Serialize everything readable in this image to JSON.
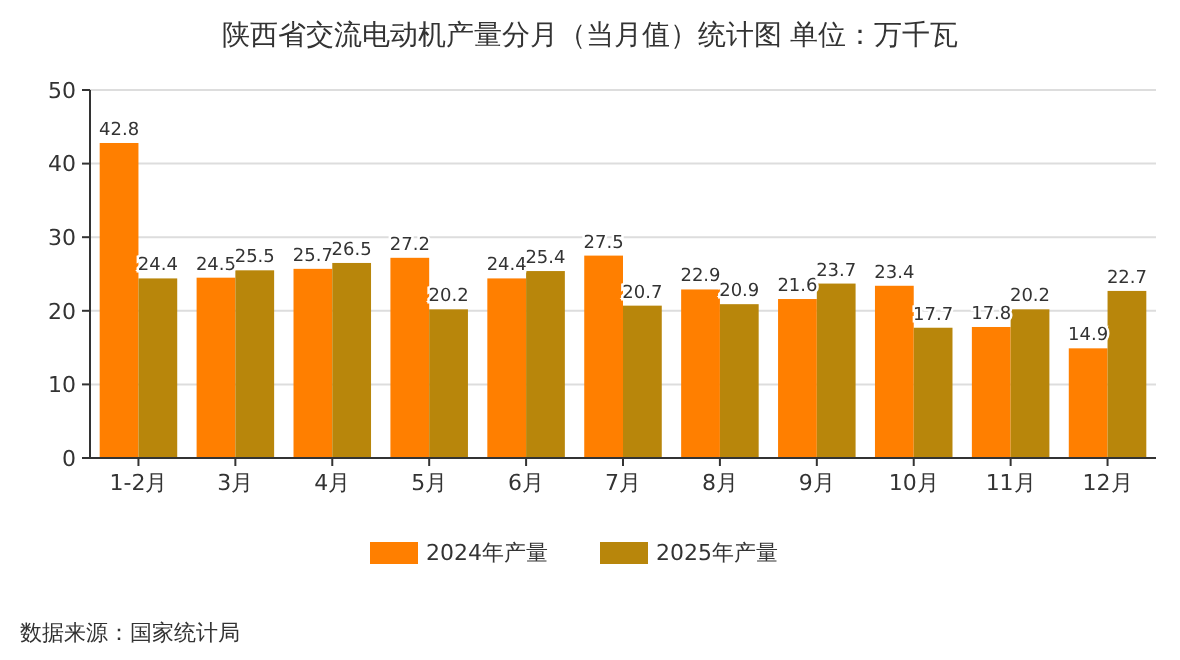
{
  "chart_data": {
    "type": "bar",
    "title": "陕西省交流电动机产量分月（当月值）统计图 单位：万千瓦",
    "categories": [
      "1-2月",
      "3月",
      "4月",
      "5月",
      "6月",
      "7月",
      "8月",
      "9月",
      "10月",
      "11月",
      "12月"
    ],
    "series": [
      {
        "name": "2024年产量",
        "color": "#ff7f00",
        "values": [
          42.8,
          24.5,
          25.7,
          27.2,
          24.4,
          27.5,
          22.9,
          21.6,
          23.4,
          17.8,
          14.9
        ]
      },
      {
        "name": "2025年产量",
        "color": "#b8860b",
        "values": [
          24.4,
          25.5,
          26.5,
          20.2,
          25.4,
          20.7,
          20.9,
          23.7,
          17.7,
          20.2,
          22.7
        ]
      }
    ],
    "ylim": [
      0,
      50
    ],
    "yticks": [
      0,
      10,
      20,
      30,
      40,
      50
    ],
    "grid": "y",
    "legend": "bottom",
    "data_labels": true,
    "annotations": [
      "数据来源：国家统计局"
    ]
  }
}
